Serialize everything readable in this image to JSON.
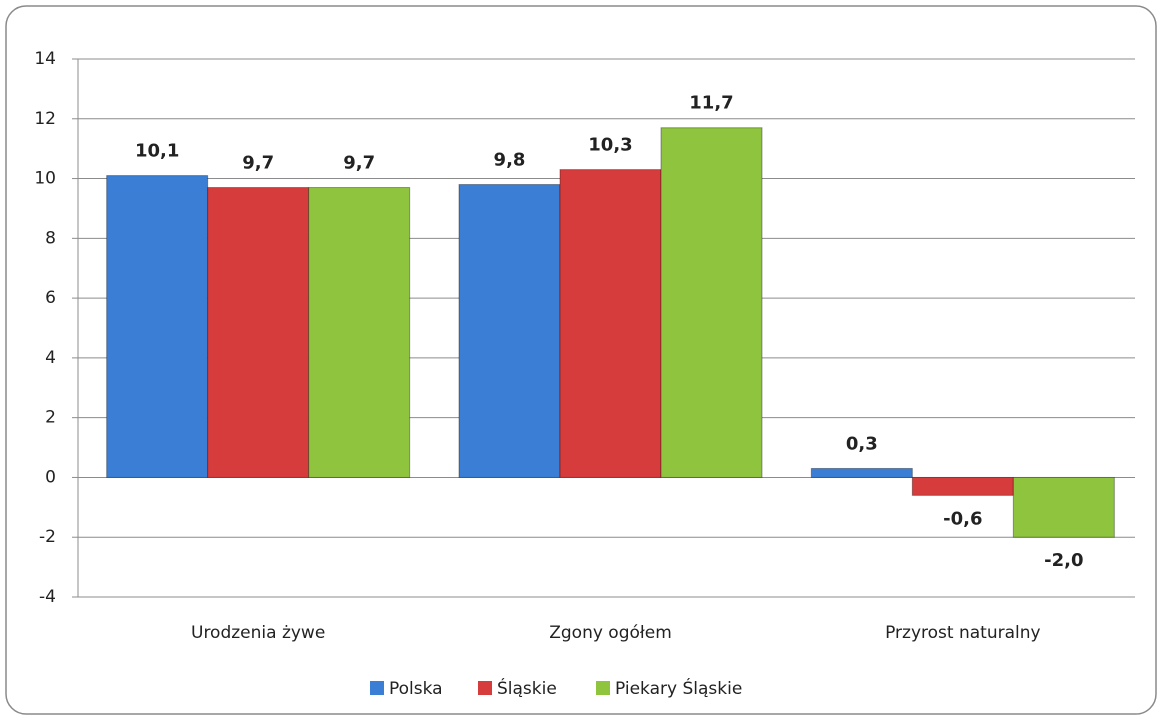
{
  "chart_data": {
    "type": "bar",
    "categories": [
      "Urodzenia żywe",
      "Zgony ogółem",
      "Przyrost naturalny"
    ],
    "series": [
      {
        "name": "Polska",
        "color": "#3a7fd5",
        "values": [
          10.1,
          9.8,
          0.3
        ],
        "value_labels": [
          "10,1",
          "9,8",
          "0,3"
        ]
      },
      {
        "name": "Śląskie",
        "color": "#d63c3c",
        "values": [
          9.7,
          10.3,
          -0.6
        ],
        "value_labels": [
          "9,7",
          "10,3",
          "-0,6"
        ]
      },
      {
        "name": "Piekary Śląskie",
        "color": "#8fc43f",
        "values": [
          9.7,
          11.7,
          -2.0
        ],
        "value_labels": [
          "9,7",
          "11,7",
          "-2,0"
        ]
      }
    ],
    "ylim": [
      -4,
      14
    ],
    "yticks": [
      -4,
      -2,
      0,
      2,
      4,
      6,
      8,
      10,
      12,
      14
    ],
    "grid": true,
    "legend": "bottom"
  }
}
